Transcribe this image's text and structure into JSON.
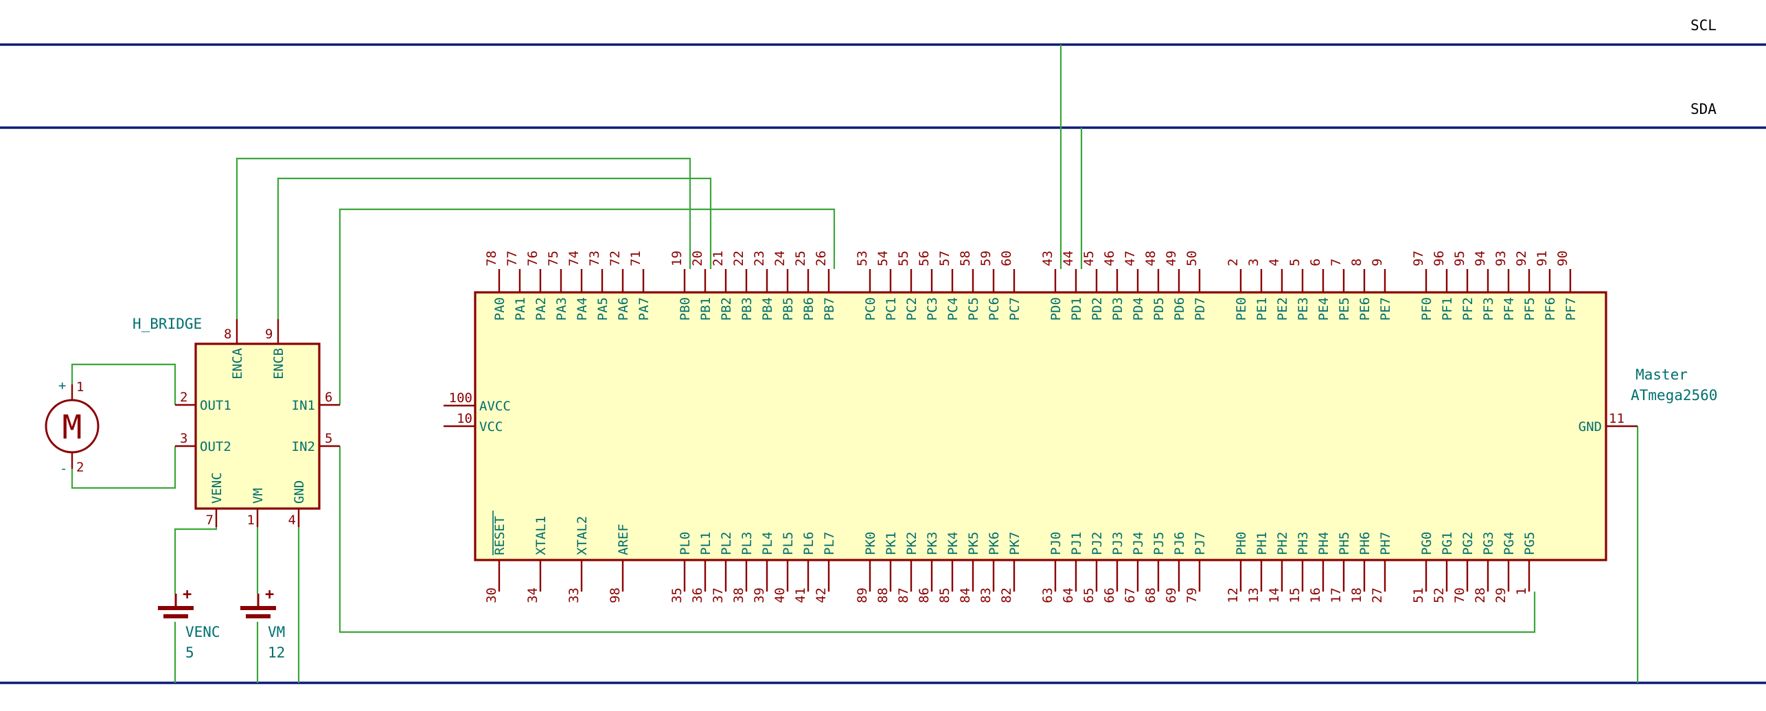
{
  "nets": {
    "scl": "SCL",
    "sda": "SDA"
  },
  "mcu": {
    "ref": "Master",
    "value": "ATmega2560",
    "top_pins": [
      {
        "name": "PA0",
        "num": "78"
      },
      {
        "name": "PA1",
        "num": "77"
      },
      {
        "name": "PA2",
        "num": "76"
      },
      {
        "name": "PA3",
        "num": "75"
      },
      {
        "name": "PA4",
        "num": "74"
      },
      {
        "name": "PA5",
        "num": "73"
      },
      {
        "name": "PA6",
        "num": "72"
      },
      {
        "name": "PA7",
        "num": "71"
      },
      {
        "name": "PB0",
        "num": "19"
      },
      {
        "name": "PB1",
        "num": "20"
      },
      {
        "name": "PB2",
        "num": "21"
      },
      {
        "name": "PB3",
        "num": "22"
      },
      {
        "name": "PB4",
        "num": "23"
      },
      {
        "name": "PB5",
        "num": "24"
      },
      {
        "name": "PB6",
        "num": "25"
      },
      {
        "name": "PB7",
        "num": "26"
      },
      {
        "name": "PC0",
        "num": "53"
      },
      {
        "name": "PC1",
        "num": "54"
      },
      {
        "name": "PC2",
        "num": "55"
      },
      {
        "name": "PC3",
        "num": "56"
      },
      {
        "name": "PC4",
        "num": "57"
      },
      {
        "name": "PC5",
        "num": "58"
      },
      {
        "name": "PC6",
        "num": "59"
      },
      {
        "name": "PC7",
        "num": "60"
      },
      {
        "name": "PD0",
        "num": "43"
      },
      {
        "name": "PD1",
        "num": "44"
      },
      {
        "name": "PD2",
        "num": "45"
      },
      {
        "name": "PD3",
        "num": "46"
      },
      {
        "name": "PD4",
        "num": "47"
      },
      {
        "name": "PD5",
        "num": "48"
      },
      {
        "name": "PD6",
        "num": "49"
      },
      {
        "name": "PD7",
        "num": "50"
      },
      {
        "name": "PE0",
        "num": "2"
      },
      {
        "name": "PE1",
        "num": "3"
      },
      {
        "name": "PE2",
        "num": "4"
      },
      {
        "name": "PE3",
        "num": "5"
      },
      {
        "name": "PE4",
        "num": "6"
      },
      {
        "name": "PE5",
        "num": "7"
      },
      {
        "name": "PE6",
        "num": "8"
      },
      {
        "name": "PE7",
        "num": "9"
      },
      {
        "name": "PF0",
        "num": "97"
      },
      {
        "name": "PF1",
        "num": "96"
      },
      {
        "name": "PF2",
        "num": "95"
      },
      {
        "name": "PF3",
        "num": "94"
      },
      {
        "name": "PF4",
        "num": "93"
      },
      {
        "name": "PF5",
        "num": "92"
      },
      {
        "name": "PF6",
        "num": "91"
      },
      {
        "name": "PF7",
        "num": "90"
      }
    ],
    "bottom_pins": [
      {
        "name": "RESET",
        "num": "30",
        "overbar": true
      },
      {
        "name": "XTAL1",
        "num": "34"
      },
      {
        "name": "XTAL2",
        "num": "33"
      },
      {
        "name": "AREF",
        "num": "98"
      },
      {
        "name": "PL0",
        "num": "35"
      },
      {
        "name": "PL1",
        "num": "36"
      },
      {
        "name": "PL2",
        "num": "37"
      },
      {
        "name": "PL3",
        "num": "38"
      },
      {
        "name": "PL4",
        "num": "39"
      },
      {
        "name": "PL5",
        "num": "40"
      },
      {
        "name": "PL6",
        "num": "41"
      },
      {
        "name": "PL7",
        "num": "42"
      },
      {
        "name": "PK0",
        "num": "89"
      },
      {
        "name": "PK1",
        "num": "88"
      },
      {
        "name": "PK2",
        "num": "87"
      },
      {
        "name": "PK3",
        "num": "86"
      },
      {
        "name": "PK4",
        "num": "85"
      },
      {
        "name": "PK5",
        "num": "84"
      },
      {
        "name": "PK6",
        "num": "83"
      },
      {
        "name": "PK7",
        "num": "82"
      },
      {
        "name": "PJ0",
        "num": "63"
      },
      {
        "name": "PJ1",
        "num": "64"
      },
      {
        "name": "PJ2",
        "num": "65"
      },
      {
        "name": "PJ3",
        "num": "66"
      },
      {
        "name": "PJ4",
        "num": "67"
      },
      {
        "name": "PJ5",
        "num": "68"
      },
      {
        "name": "PJ6",
        "num": "69"
      },
      {
        "name": "PJ7",
        "num": "79"
      },
      {
        "name": "PH0",
        "num": "12"
      },
      {
        "name": "PH1",
        "num": "13"
      },
      {
        "name": "PH2",
        "num": "14"
      },
      {
        "name": "PH3",
        "num": "15"
      },
      {
        "name": "PH4",
        "num": "16"
      },
      {
        "name": "PH5",
        "num": "17"
      },
      {
        "name": "PH6",
        "num": "18"
      },
      {
        "name": "PH7",
        "num": "27"
      },
      {
        "name": "PG0",
        "num": "51"
      },
      {
        "name": "PG1",
        "num": "52"
      },
      {
        "name": "PG2",
        "num": "70"
      },
      {
        "name": "PG3",
        "num": "28"
      },
      {
        "name": "PG4",
        "num": "29"
      },
      {
        "name": "PG5",
        "num": "1"
      }
    ],
    "left_pins": [
      {
        "name": "AVCC",
        "num": "100"
      },
      {
        "name": "VCC",
        "num": "10"
      }
    ],
    "right_pins": [
      {
        "name": "GND",
        "num": "11"
      }
    ]
  },
  "hbridge": {
    "ref": "H_BRIDGE",
    "pins": {
      "enca": {
        "name": "ENCA",
        "num": "8"
      },
      "encb": {
        "name": "ENCB",
        "num": "9"
      },
      "out1": {
        "name": "OUT1",
        "num": "2"
      },
      "out2": {
        "name": "OUT2",
        "num": "3"
      },
      "in1": {
        "name": "IN1",
        "num": "6"
      },
      "in2": {
        "name": "IN2",
        "num": "5"
      },
      "venc": {
        "name": "VENC",
        "num": "7"
      },
      "vm": {
        "name": "VM",
        "num": "1"
      },
      "gnd": {
        "name": "GND",
        "num": "4"
      }
    }
  },
  "motor": {
    "letter": "M",
    "pin1": "1",
    "pin2": "2",
    "plus": "+",
    "minus": "-"
  },
  "batteries": [
    {
      "name": "VENC",
      "value": "5",
      "plus": "+"
    },
    {
      "name": "VM",
      "value": "12",
      "plus": "+"
    }
  ],
  "colors": {
    "wire": "#3aa63a",
    "bus": "#0d1a7a",
    "pin": "#8b0000",
    "label": "#006e6e",
    "body_fill": "#ffffc4"
  }
}
